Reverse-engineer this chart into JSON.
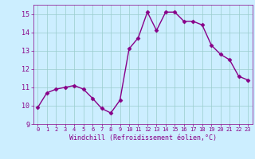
{
  "x": [
    0,
    1,
    2,
    3,
    4,
    5,
    6,
    7,
    8,
    9,
    10,
    11,
    12,
    13,
    14,
    15,
    16,
    17,
    18,
    19,
    20,
    21,
    22,
    23
  ],
  "y": [
    9.9,
    10.7,
    10.9,
    11.0,
    11.1,
    10.9,
    10.4,
    9.85,
    9.6,
    10.3,
    13.1,
    13.7,
    15.1,
    14.1,
    15.1,
    15.1,
    14.6,
    14.6,
    14.4,
    13.3,
    12.8,
    12.5,
    11.6,
    11.4
  ],
  "line_color": "#880088",
  "marker": "D",
  "markersize": 2.5,
  "linewidth": 1.0,
  "bg_color": "#cceeff",
  "grid_color": "#99cccc",
  "xlabel": "Windchill (Refroidissement éolien,°C)",
  "ylim": [
    9.0,
    15.5
  ],
  "xlim": [
    -0.5,
    23.5
  ],
  "yticks": [
    9,
    10,
    11,
    12,
    13,
    14,
    15
  ],
  "xticks": [
    0,
    1,
    2,
    3,
    4,
    5,
    6,
    7,
    8,
    9,
    10,
    11,
    12,
    13,
    14,
    15,
    16,
    17,
    18,
    19,
    20,
    21,
    22,
    23
  ]
}
